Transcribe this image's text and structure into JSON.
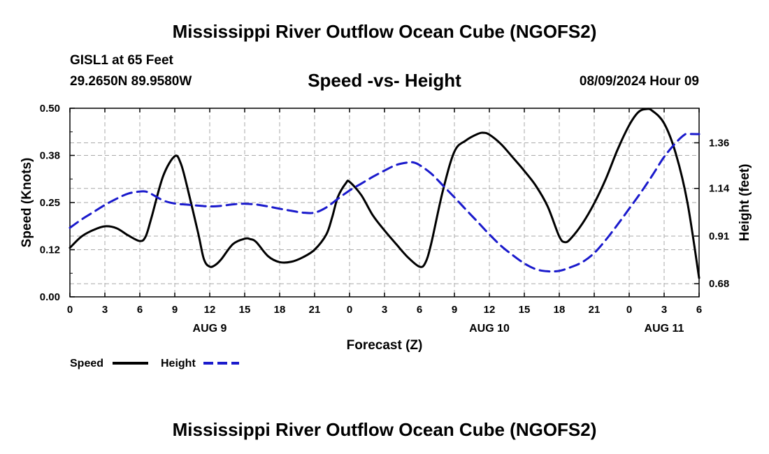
{
  "page": {
    "title": "Mississippi River Outflow Ocean Cube (NGOFS2)",
    "station": "GISL1 at 65 Feet",
    "coords": "29.2650N  89.9580W",
    "subtitle": "Speed -vs- Height",
    "timestamp": "08/09/2024 Hour 09",
    "footer_title": "Mississippi River Outflow Ocean Cube (NGOFS2)"
  },
  "chart_data": {
    "type": "line",
    "title": "Speed -vs- Height",
    "xlabel": "Forecast (Z)",
    "ylabel": "Speed (Knots)",
    "y2label": "Height (feet)",
    "x_unit": "hours since 2024-08-09 00Z",
    "xlim": [
      0,
      54
    ],
    "ylim": [
      0,
      0.5
    ],
    "y2lim": [
      0.6167,
      1.5267
    ],
    "x_ticks": [
      {
        "x": 0,
        "label": "0"
      },
      {
        "x": 3,
        "label": "3"
      },
      {
        "x": 6,
        "label": "6"
      },
      {
        "x": 9,
        "label": "9"
      },
      {
        "x": 12,
        "label": "12"
      },
      {
        "x": 15,
        "label": "15"
      },
      {
        "x": 18,
        "label": "18"
      },
      {
        "x": 21,
        "label": "21"
      },
      {
        "x": 24,
        "label": "0"
      },
      {
        "x": 27,
        "label": "3"
      },
      {
        "x": 30,
        "label": "6"
      },
      {
        "x": 33,
        "label": "9"
      },
      {
        "x": 36,
        "label": "12"
      },
      {
        "x": 39,
        "label": "15"
      },
      {
        "x": 42,
        "label": "18"
      },
      {
        "x": 45,
        "label": "21"
      },
      {
        "x": 48,
        "label": "0"
      },
      {
        "x": 51,
        "label": "3"
      },
      {
        "x": 54,
        "label": "6"
      }
    ],
    "date_labels": [
      {
        "x": 12,
        "label": "AUG 9"
      },
      {
        "x": 36,
        "label": "AUG 10"
      },
      {
        "x": 51,
        "label": "AUG 11"
      }
    ],
    "y_ticks": [
      {
        "y": 0,
        "label": "0.00"
      },
      {
        "y": 0.125,
        "label": "0.12"
      },
      {
        "y": 0.25,
        "label": "0.25"
      },
      {
        "y": 0.375,
        "label": "0.38"
      },
      {
        "y": 0.5,
        "label": "0.50"
      }
    ],
    "y2_ticks": [
      {
        "y": 0.68,
        "label": "0.68"
      },
      {
        "y": 0.91,
        "label": "0.91"
      },
      {
        "y": 1.14,
        "label": "1.14"
      },
      {
        "y": 1.36,
        "label": "1.36"
      }
    ],
    "grid": true,
    "legend_position": "bottom-left",
    "series": [
      {
        "name": "Speed",
        "axis": "left",
        "color": "#000000",
        "dash": "solid",
        "points": [
          [
            0,
            0.13
          ],
          [
            1,
            0.16
          ],
          [
            2,
            0.177
          ],
          [
            3,
            0.187
          ],
          [
            4,
            0.182
          ],
          [
            5,
            0.163
          ],
          [
            6,
            0.148
          ],
          [
            6.5,
            0.16
          ],
          [
            7,
            0.21
          ],
          [
            8,
            0.32
          ],
          [
            9,
            0.373
          ],
          [
            9.5,
            0.355
          ],
          [
            10,
            0.3
          ],
          [
            11,
            0.17
          ],
          [
            11.5,
            0.1
          ],
          [
            12,
            0.08
          ],
          [
            12.5,
            0.085
          ],
          [
            13,
            0.1
          ],
          [
            14,
            0.14
          ],
          [
            15,
            0.154
          ],
          [
            15.5,
            0.153
          ],
          [
            16,
            0.145
          ],
          [
            17,
            0.108
          ],
          [
            18,
            0.092
          ],
          [
            19,
            0.093
          ],
          [
            20,
            0.105
          ],
          [
            21,
            0.125
          ],
          [
            22,
            0.165
          ],
          [
            22.5,
            0.21
          ],
          [
            23,
            0.265
          ],
          [
            23.7,
            0.302
          ],
          [
            24,
            0.305
          ],
          [
            25,
            0.27
          ],
          [
            26,
            0.216
          ],
          [
            27,
            0.176
          ],
          [
            28,
            0.14
          ],
          [
            29,
            0.105
          ],
          [
            30,
            0.08
          ],
          [
            30.5,
            0.09
          ],
          [
            31,
            0.14
          ],
          [
            32,
            0.28
          ],
          [
            33,
            0.385
          ],
          [
            34,
            0.415
          ],
          [
            35,
            0.432
          ],
          [
            35.5,
            0.435
          ],
          [
            36,
            0.43
          ],
          [
            37,
            0.405
          ],
          [
            38,
            0.37
          ],
          [
            39,
            0.334
          ],
          [
            40,
            0.294
          ],
          [
            41,
            0.24
          ],
          [
            42,
            0.16
          ],
          [
            42.5,
            0.145
          ],
          [
            43,
            0.155
          ],
          [
            44,
            0.195
          ],
          [
            45,
            0.248
          ],
          [
            46,
            0.313
          ],
          [
            47,
            0.39
          ],
          [
            48,
            0.455
          ],
          [
            48.8,
            0.49
          ],
          [
            49.5,
            0.498
          ],
          [
            50,
            0.493
          ],
          [
            51,
            0.46
          ],
          [
            52,
            0.38
          ],
          [
            53,
            0.25
          ],
          [
            54,
            0.05
          ]
        ]
      },
      {
        "name": "Height",
        "axis": "right",
        "color": "#1a1acc",
        "dash": "dashed",
        "points": [
          [
            0,
            0.95
          ],
          [
            1,
            0.99
          ],
          [
            2,
            1.025
          ],
          [
            3,
            1.06
          ],
          [
            4,
            1.09
          ],
          [
            5,
            1.115
          ],
          [
            6,
            1.125
          ],
          [
            6.5,
            1.125
          ],
          [
            7,
            1.113
          ],
          [
            8,
            1.082
          ],
          [
            9,
            1.067
          ],
          [
            10,
            1.062
          ],
          [
            11,
            1.057
          ],
          [
            12,
            1.053
          ],
          [
            13,
            1.056
          ],
          [
            14,
            1.063
          ],
          [
            15,
            1.066
          ],
          [
            16,
            1.062
          ],
          [
            17,
            1.053
          ],
          [
            18,
            1.042
          ],
          [
            19,
            1.032
          ],
          [
            20,
            1.023
          ],
          [
            21,
            1.023
          ],
          [
            22,
            1.048
          ],
          [
            23,
            1.09
          ],
          [
            24,
            1.13
          ],
          [
            25,
            1.163
          ],
          [
            26,
            1.196
          ],
          [
            27,
            1.226
          ],
          [
            28,
            1.253
          ],
          [
            29,
            1.265
          ],
          [
            29.5,
            1.265
          ],
          [
            30,
            1.253
          ],
          [
            31,
            1.212
          ],
          [
            32,
            1.155
          ],
          [
            33,
            1.097
          ],
          [
            34,
            1.037
          ],
          [
            35,
            0.978
          ],
          [
            36,
            0.918
          ],
          [
            37,
            0.863
          ],
          [
            38,
            0.818
          ],
          [
            39,
            0.778
          ],
          [
            40,
            0.75
          ],
          [
            41,
            0.74
          ],
          [
            42,
            0.742
          ],
          [
            43,
            0.76
          ],
          [
            44,
            0.785
          ],
          [
            45,
            0.828
          ],
          [
            46,
            0.892
          ],
          [
            47,
            0.965
          ],
          [
            48,
            1.042
          ],
          [
            49,
            1.12
          ],
          [
            50,
            1.204
          ],
          [
            51,
            1.292
          ],
          [
            52,
            1.36
          ],
          [
            52.7,
            1.397
          ],
          [
            53,
            1.402
          ],
          [
            54,
            1.402
          ]
        ]
      }
    ]
  }
}
